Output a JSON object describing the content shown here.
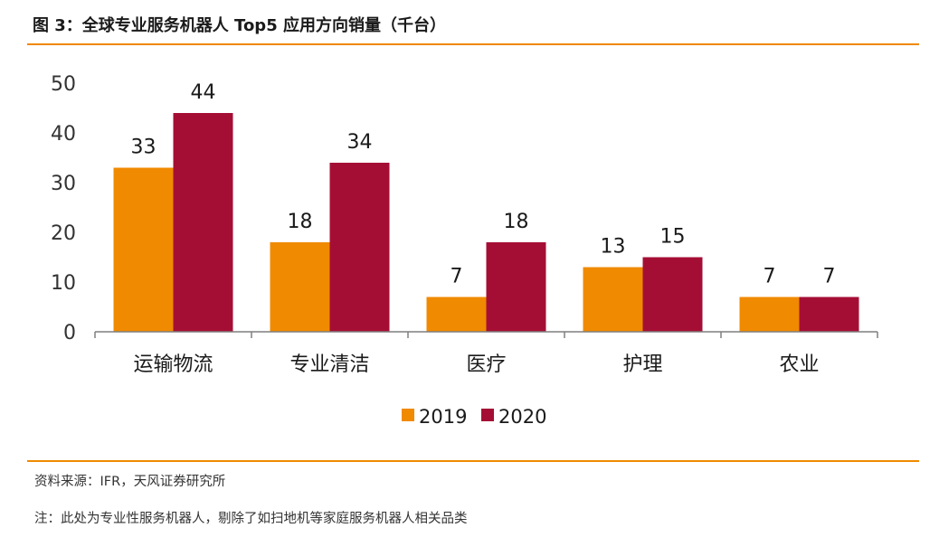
{
  "figure": {
    "title": "图 3：全球专业服务机器人 Top5 应用方向销量（千台）",
    "source": "资料来源：IFR，天风证券研究所",
    "note": "注：此处为专业性服务机器人，剔除了如扫地机等家庭服务机器人相关品类"
  },
  "colors": {
    "accent_rule": "#f08a00",
    "series_2019": "#f08a00",
    "series_2020": "#a50e34",
    "axis": "#7f7f7f",
    "text": "#1a1a1a"
  },
  "chart_data": {
    "type": "bar",
    "title": "全球专业服务机器人 Top5 应用方向销量（千台）",
    "xlabel": "",
    "ylabel": "",
    "ylim": [
      0,
      50
    ],
    "yticks": [
      0,
      10,
      20,
      30,
      40,
      50
    ],
    "grid": false,
    "legend_position": "bottom-center",
    "categories": [
      "运输物流",
      "专业清洁",
      "医疗",
      "护理",
      "农业"
    ],
    "series": [
      {
        "name": "2019",
        "color": "#f08a00",
        "values": [
          33,
          18,
          7,
          13,
          7
        ]
      },
      {
        "name": "2020",
        "color": "#a50e34",
        "values": [
          44,
          34,
          18,
          15,
          7
        ]
      }
    ]
  }
}
